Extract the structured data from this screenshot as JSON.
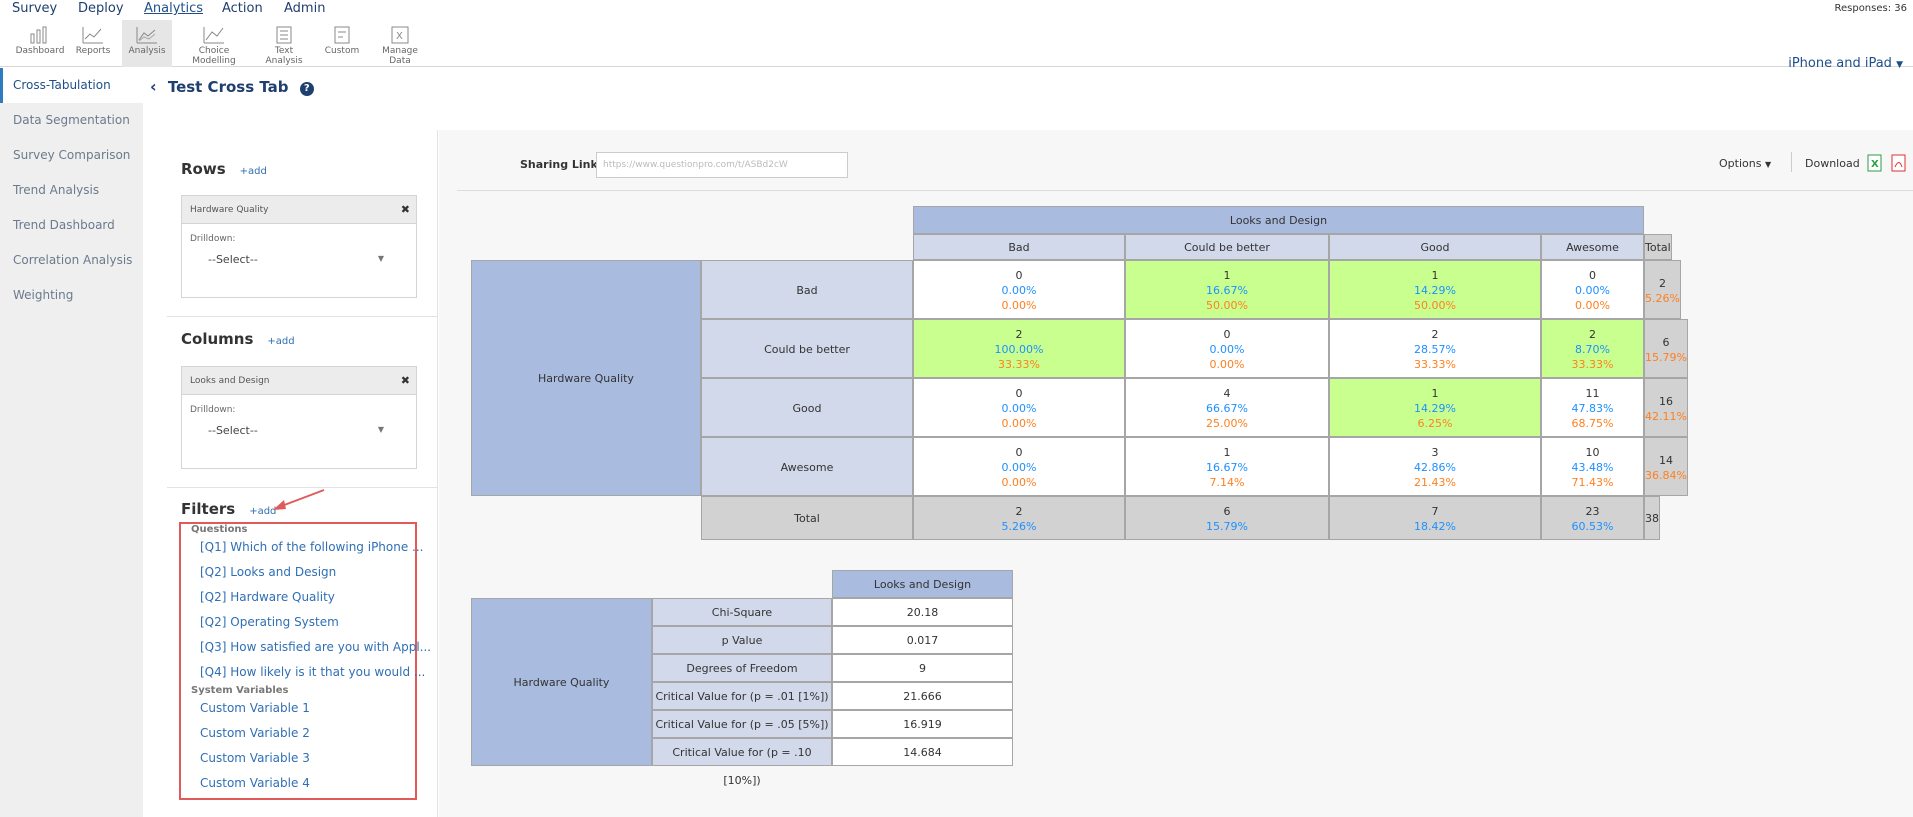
{
  "nav": {
    "items": [
      "Survey",
      "Deploy",
      "Analytics",
      "Action",
      "Admin"
    ],
    "responses": "Responses: 36"
  },
  "toolbar": {
    "items": [
      "Dashboard",
      "Reports",
      "Analysis",
      "Choice Modelling",
      "Text Analysis",
      "Custom",
      "Manage Data"
    ],
    "survey_select": "iPhone and iPad"
  },
  "sidebar": {
    "items": [
      "Cross-Tabulation",
      "Data Segmentation",
      "Survey Comparison",
      "Trend Analysis",
      "Trend Dashboard",
      "Correlation Analysis",
      "Weighting"
    ]
  },
  "page": {
    "title": "Test Cross Tab"
  },
  "left": {
    "rows_title": "Rows",
    "columns_title": "Columns",
    "filters_title": "Filters",
    "add_label": "+add",
    "row_var": "Hardware Quality",
    "col_var": "Looks and Design",
    "drilldown": "Drilldown:",
    "select": "--Select--",
    "filters": {
      "questions_label": "Questions",
      "questions": [
        "[Q1] Which of the following iPhone ...",
        "[Q2] Looks and Design",
        "[Q2] Hardware Quality",
        "[Q2] Operating System",
        "[Q3] How satisfied are you with Appl...",
        "[Q4] How likely is it that you would ..."
      ],
      "system_label": "System Variables",
      "system": [
        "Custom Variable 1",
        "Custom Variable 2",
        "Custom Variable 3",
        "Custom Variable 4"
      ]
    }
  },
  "main": {
    "sharing_label": "Sharing Link",
    "sharing_url": "https://www.questionpro.com/t/ASBd2cW",
    "options": "Options",
    "download": "Download"
  },
  "crosstab": {
    "col_var": "Looks and Design",
    "row_var": "Hardware Quality",
    "total_label": "Total",
    "cols": [
      "Bad",
      "Could be better",
      "Good",
      "Awesome"
    ],
    "rows": [
      {
        "label": "Bad",
        "cells": [
          [
            "0",
            "0.00%",
            "0.00%"
          ],
          [
            "1",
            "16.67%",
            "50.00%"
          ],
          [
            "1",
            "14.29%",
            "50.00%"
          ],
          [
            "0",
            "0.00%",
            "0.00%"
          ]
        ],
        "total": [
          "2",
          "5.26%"
        ]
      },
      {
        "label": "Could be better",
        "cells": [
          [
            "2",
            "100.00%",
            "33.33%"
          ],
          [
            "0",
            "0.00%",
            "0.00%"
          ],
          [
            "2",
            "28.57%",
            "33.33%"
          ],
          [
            "2",
            "8.70%",
            "33.33%"
          ]
        ],
        "total": [
          "6",
          "15.79%"
        ]
      },
      {
        "label": "Good",
        "cells": [
          [
            "0",
            "0.00%",
            "0.00%"
          ],
          [
            "4",
            "66.67%",
            "25.00%"
          ],
          [
            "1",
            "14.29%",
            "6.25%"
          ],
          [
            "11",
            "47.83%",
            "68.75%"
          ]
        ],
        "total": [
          "16",
          "42.11%"
        ]
      },
      {
        "label": "Awesome",
        "cells": [
          [
            "0",
            "0.00%",
            "0.00%"
          ],
          [
            "1",
            "16.67%",
            "7.14%"
          ],
          [
            "3",
            "42.86%",
            "21.43%"
          ],
          [
            "10",
            "43.48%",
            "71.43%"
          ]
        ],
        "total": [
          "14",
          "36.84%"
        ]
      }
    ],
    "highlight": [
      [
        0,
        1
      ],
      [
        0,
        2
      ],
      [
        1,
        0
      ],
      [
        1,
        3
      ],
      [
        2,
        2
      ]
    ],
    "col_totals": [
      [
        "2",
        "5.26%"
      ],
      [
        "6",
        "15.79%"
      ],
      [
        "7",
        "18.42%"
      ],
      [
        "23",
        "60.53%"
      ]
    ],
    "grand_total": "38"
  },
  "stats": {
    "col_var": "Looks and Design",
    "row_var": "Hardware Quality",
    "rows": [
      {
        "label": "Chi-Square",
        "value": "20.18"
      },
      {
        "label": "p Value",
        "value": "0.017"
      },
      {
        "label": "Degrees of Freedom",
        "value": "9"
      },
      {
        "label": "Critical Value for (p = .01 [1%])",
        "value": "21.666"
      },
      {
        "label": "Critical Value for (p = .05 [5%])",
        "value": "16.919"
      },
      {
        "label": "Critical Value for (p = .10 [10%])",
        "value": "14.684"
      }
    ]
  },
  "colors": {
    "accent": "#1f4f8a",
    "link": "#2f6fb5",
    "highlight": "#c9ff8f",
    "header": "#d1d9ea",
    "header_dark": "#a9bbdf",
    "pct1": "#1e90ff",
    "pct2": "#ff7f1f",
    "annotation": "#e05a5a"
  }
}
